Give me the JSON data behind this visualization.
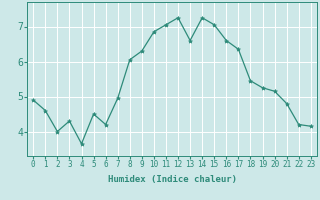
{
  "x": [
    0,
    1,
    2,
    3,
    4,
    5,
    6,
    7,
    8,
    9,
    10,
    11,
    12,
    13,
    14,
    15,
    16,
    17,
    18,
    19,
    20,
    21,
    22,
    23
  ],
  "y": [
    4.9,
    4.6,
    4.0,
    4.3,
    3.65,
    4.5,
    4.2,
    4.95,
    6.05,
    6.3,
    6.85,
    7.05,
    7.25,
    6.6,
    7.25,
    7.05,
    6.6,
    6.35,
    5.45,
    5.25,
    5.15,
    4.8,
    4.2,
    4.15
  ],
  "line_color": "#2e8b7a",
  "marker": "*",
  "marker_size": 3,
  "bg_color": "#cde8e8",
  "grid_color": "#ffffff",
  "xlabel": "Humidex (Indice chaleur)",
  "xlim": [
    -0.5,
    23.5
  ],
  "ylim": [
    3.3,
    7.7
  ],
  "yticks": [
    4,
    5,
    6,
    7
  ],
  "xticks": [
    0,
    1,
    2,
    3,
    4,
    5,
    6,
    7,
    8,
    9,
    10,
    11,
    12,
    13,
    14,
    15,
    16,
    17,
    18,
    19,
    20,
    21,
    22,
    23
  ],
  "tick_color": "#2e8b7a",
  "label_fontsize": 6.5,
  "tick_fontsize": 5.5,
  "ytick_fontsize": 7.0
}
